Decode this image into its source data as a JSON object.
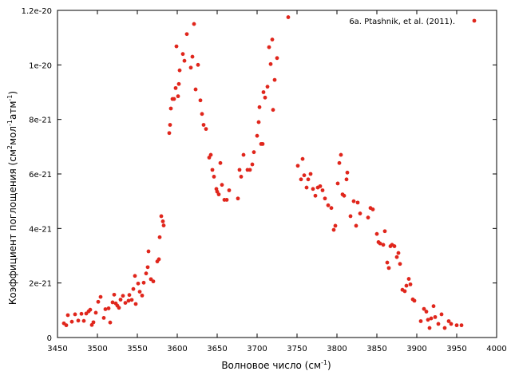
{
  "chart_data": {
    "type": "scatter",
    "xlabel": "Волновое число (см",
    "xlabel_sup": "-1",
    "xlabel_end": ")",
    "ylabel_parts": [
      {
        "t": "Коэффициент поглощения (см",
        "sup": false
      },
      {
        "t": "2",
        "sup": true
      },
      {
        "t": "мол",
        "sup": false
      },
      {
        "t": "-1",
        "sup": true
      },
      {
        "t": "атм",
        "sup": false
      },
      {
        "t": "-1",
        "sup": true
      },
      {
        "t": ")",
        "sup": false
      }
    ],
    "xlim": [
      3450,
      4000
    ],
    "ylim": [
      0,
      1.2e-20
    ],
    "x_ticks": [
      3450,
      3500,
      3550,
      3600,
      3650,
      3700,
      3750,
      3800,
      3850,
      3900,
      3950,
      4000
    ],
    "x_tick_labels": [
      "3450",
      "3500",
      "3550",
      "3600",
      "3650",
      "3700",
      "3750",
      "3800",
      "3850",
      "3900",
      "3950",
      "4000"
    ],
    "y_ticks": [
      0,
      2e-21,
      4e-21,
      6e-21,
      8e-21,
      1e-20,
      1.2e-20
    ],
    "y_tick_labels": [
      "0",
      "2e-21",
      "4e-21",
      "6e-21",
      "8e-21",
      "1e-20",
      "1.2e-20"
    ],
    "grid": false,
    "legend_position": "top-right",
    "color": "#e0261c",
    "series": [
      {
        "name": "6a. Ptashnik, et al. (2011).",
        "points": [
          [
            3458,
            5.2e-22
          ],
          [
            3461,
            4.5e-22
          ],
          [
            3463,
            8.2e-22
          ],
          [
            3468,
            5.8e-22
          ],
          [
            3472,
            8.5e-22
          ],
          [
            3476,
            6.2e-22
          ],
          [
            3480,
            8.7e-22
          ],
          [
            3483,
            6.1e-22
          ],
          [
            3486,
            8.8e-22
          ],
          [
            3489,
            9.6e-22
          ],
          [
            3491,
            1.02e-21
          ],
          [
            3493,
            4.6e-22
          ],
          [
            3495,
            5.6e-22
          ],
          [
            3498,
            9.1e-22
          ],
          [
            3501,
            1.31e-21
          ],
          [
            3504,
            1.49e-21
          ],
          [
            3508,
            7.2e-22
          ],
          [
            3510,
            1.04e-21
          ],
          [
            3514,
            1.07e-21
          ],
          [
            3516,
            5.5e-22
          ],
          [
            3519,
            1.29e-21
          ],
          [
            3521,
            1.57e-21
          ],
          [
            3523,
            1.25e-21
          ],
          [
            3525,
            1.17e-21
          ],
          [
            3527,
            1.09e-21
          ],
          [
            3529,
            1.39e-21
          ],
          [
            3532,
            1.53e-21
          ],
          [
            3535,
            1.27e-21
          ],
          [
            3539,
            1.35e-21
          ],
          [
            3540,
            1.56e-21
          ],
          [
            3543,
            1.38e-21
          ],
          [
            3545,
            1.78e-21
          ],
          [
            3547,
            2.26e-21
          ],
          [
            3548,
            1.23e-21
          ],
          [
            3551,
            1.98e-21
          ],
          [
            3553,
            1.68e-21
          ],
          [
            3556,
            1.54e-21
          ],
          [
            3558,
            2.01e-21
          ],
          [
            3561,
            2.35e-21
          ],
          [
            3563,
            2.58e-21
          ],
          [
            3564,
            3.16e-21
          ],
          [
            3567,
            2.14e-21
          ],
          [
            3570,
            2.06e-21
          ],
          [
            3575,
            2.79e-21
          ],
          [
            3577,
            2.87e-21
          ],
          [
            3578,
            3.68e-21
          ],
          [
            3580,
            4.45e-21
          ],
          [
            3582,
            4.26e-21
          ],
          [
            3583,
            4.11e-21
          ],
          [
            3590,
            7.5e-21
          ],
          [
            3591,
            7.8e-21
          ],
          [
            3592,
            8.4e-21
          ],
          [
            3594,
            8.75e-21
          ],
          [
            3596,
            8.75e-21
          ],
          [
            3598,
            9.15e-21
          ],
          [
            3599,
            1.068e-20
          ],
          [
            3601,
            8.85e-21
          ],
          [
            3602,
            9.3e-21
          ],
          [
            3603,
            9.8e-21
          ],
          [
            3607,
            1.04e-20
          ],
          [
            3609,
            1.015e-20
          ],
          [
            3612,
            1.113e-20
          ],
          [
            3617,
            9.9e-21
          ],
          [
            3619,
            1.03e-20
          ],
          [
            3621,
            1.15e-20
          ],
          [
            3623,
            9.1e-21
          ],
          [
            3626,
            1e-20
          ],
          [
            3629,
            8.7e-21
          ],
          [
            3631,
            8.2e-21
          ],
          [
            3633,
            7.8e-21
          ],
          [
            3636,
            7.65e-21
          ],
          [
            3640,
            6.6e-21
          ],
          [
            3642,
            6.7e-21
          ],
          [
            3644,
            6.15e-21
          ],
          [
            3646,
            5.9e-21
          ],
          [
            3649,
            5.45e-21
          ],
          [
            3650,
            5.35e-21
          ],
          [
            3652,
            5.25e-21
          ],
          [
            3654,
            6.4e-21
          ],
          [
            3656,
            5.6e-21
          ],
          [
            3659,
            5.05e-21
          ],
          [
            3662,
            5.05e-21
          ],
          [
            3665,
            5.4e-21
          ],
          [
            3676,
            5.1e-21
          ],
          [
            3678,
            6.15e-21
          ],
          [
            3680,
            5.9e-21
          ],
          [
            3683,
            6.7e-21
          ],
          [
            3688,
            6.15e-21
          ],
          [
            3691,
            6.15e-21
          ],
          [
            3694,
            6.35e-21
          ],
          [
            3696,
            6.8e-21
          ],
          [
            3700,
            7.4e-21
          ],
          [
            3702,
            7.9e-21
          ],
          [
            3703,
            8.45e-21
          ],
          [
            3705,
            7.1e-21
          ],
          [
            3707,
            7.1e-21
          ],
          [
            3708,
            9e-21
          ],
          [
            3710,
            8.8e-21
          ],
          [
            3713,
            9.2e-21
          ],
          [
            3715,
            1.065e-20
          ],
          [
            3717,
            1.003e-20
          ],
          [
            3719,
            1.093e-20
          ],
          [
            3720,
            8.35e-21
          ],
          [
            3722,
            9.45e-21
          ],
          [
            3725,
            1.025e-20
          ],
          [
            3739,
            1.175e-20
          ],
          [
            3751,
            6.3e-21
          ],
          [
            3755,
            5.8e-21
          ],
          [
            3757,
            6.55e-21
          ],
          [
            3759,
            5.95e-21
          ],
          [
            3762,
            5.5e-21
          ],
          [
            3764,
            5.8e-21
          ],
          [
            3767,
            6e-21
          ],
          [
            3770,
            5.45e-21
          ],
          [
            3773,
            5.2e-21
          ],
          [
            3776,
            5.5e-21
          ],
          [
            3779,
            5.55e-21
          ],
          [
            3782,
            5.4e-21
          ],
          [
            3785,
            5.1e-21
          ],
          [
            3789,
            4.85e-21
          ],
          [
            3793,
            4.75e-21
          ],
          [
            3796,
            3.95e-21
          ],
          [
            3798,
            4.1e-21
          ],
          [
            3801,
            5.65e-21
          ],
          [
            3803,
            6.4e-21
          ],
          [
            3805,
            6.7e-21
          ],
          [
            3807,
            5.25e-21
          ],
          [
            3809,
            5.2e-21
          ],
          [
            3812,
            5.8e-21
          ],
          [
            3813,
            6.05e-21
          ],
          [
            3817,
            4.45e-21
          ],
          [
            3821,
            5e-21
          ],
          [
            3824,
            4.1e-21
          ],
          [
            3826,
            4.95e-21
          ],
          [
            3829,
            4.55e-21
          ],
          [
            3839,
            4.4e-21
          ],
          [
            3842,
            4.75e-21
          ],
          [
            3845,
            4.7e-21
          ],
          [
            3850,
            3.8e-21
          ],
          [
            3852,
            3.5e-21
          ],
          [
            3854,
            3.45e-21
          ],
          [
            3858,
            3.4e-21
          ],
          [
            3860,
            3.9e-21
          ],
          [
            3863,
            2.75e-21
          ],
          [
            3865,
            2.55e-21
          ],
          [
            3867,
            3.35e-21
          ],
          [
            3869,
            3.4e-21
          ],
          [
            3872,
            3.35e-21
          ],
          [
            3875,
            2.95e-21
          ],
          [
            3877,
            3.1e-21
          ],
          [
            3879,
            2.7e-21
          ],
          [
            3882,
            1.75e-21
          ],
          [
            3885,
            1.7e-21
          ],
          [
            3887,
            1.9e-21
          ],
          [
            3890,
            2.15e-21
          ],
          [
            3892,
            1.95e-21
          ],
          [
            3895,
            1.4e-21
          ],
          [
            3897,
            1.35e-21
          ],
          [
            3905,
            6e-22
          ],
          [
            3909,
            1.05e-21
          ],
          [
            3912,
            9.5e-22
          ],
          [
            3914,
            6.5e-22
          ],
          [
            3916,
            3.5e-22
          ],
          [
            3918,
            7e-22
          ],
          [
            3921,
            1.15e-21
          ],
          [
            3923,
            7.5e-22
          ],
          [
            3927,
            5e-22
          ],
          [
            3931,
            8.5e-22
          ],
          [
            3935,
            3.5e-22
          ],
          [
            3940,
            6e-22
          ],
          [
            3943,
            5e-22
          ],
          [
            3950,
            4.5e-22
          ],
          [
            3956,
            4.5e-22
          ]
        ]
      }
    ]
  }
}
